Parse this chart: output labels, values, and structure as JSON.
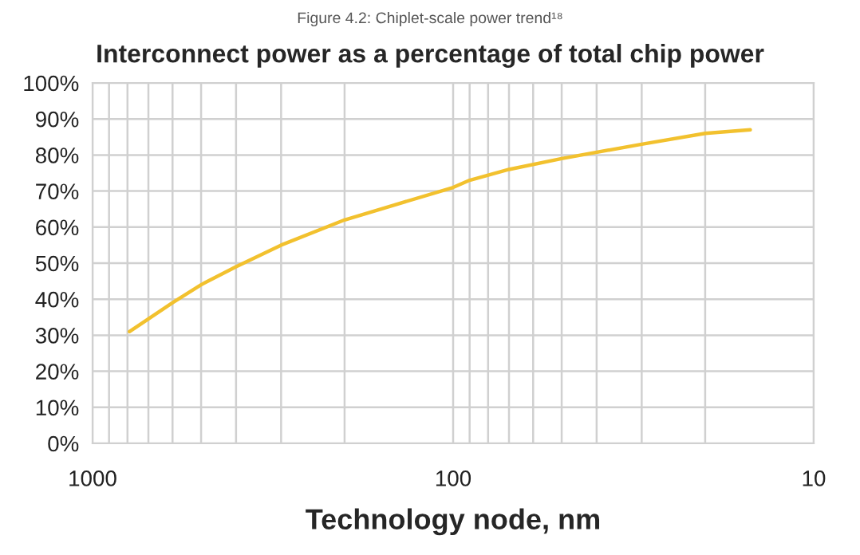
{
  "chart_data": {
    "type": "line",
    "title": "Interconnect power as a percentage of total chip power",
    "subtitle": "Figure 4.2: Chiplet-scale power trend¹⁸",
    "xlabel": "Technology node, nm",
    "x": [
      790,
      600,
      500,
      400,
      300,
      200,
      100,
      90,
      70,
      50,
      30,
      20,
      15
    ],
    "series": [
      {
        "color": "#f2c12e",
        "values": [
          31,
          39,
          44,
          49,
          55,
          62,
          71,
          73,
          76,
          79,
          83,
          86,
          87
        ]
      }
    ],
    "log": "x",
    "xlim": [
      1000,
      10
    ],
    "xticks": [
      1000,
      100,
      10
    ],
    "ylim": [
      0,
      100
    ],
    "yticks": [
      {
        "value": 0,
        "label": "0%"
      },
      {
        "value": 10,
        "label": "10%"
      },
      {
        "value": 20,
        "label": "20%"
      },
      {
        "value": 30,
        "label": "30%"
      },
      {
        "value": 40,
        "label": "40%"
      },
      {
        "value": 50,
        "label": "50%"
      },
      {
        "value": 60,
        "label": "60%"
      },
      {
        "value": 70,
        "label": "70%"
      },
      {
        "value": 80,
        "label": "80%"
      },
      {
        "value": 90,
        "label": "90%"
      },
      {
        "value": 100,
        "label": "100%"
      }
    ],
    "grid": true,
    "marker": "none",
    "line_style": "solid",
    "legend": false
  }
}
